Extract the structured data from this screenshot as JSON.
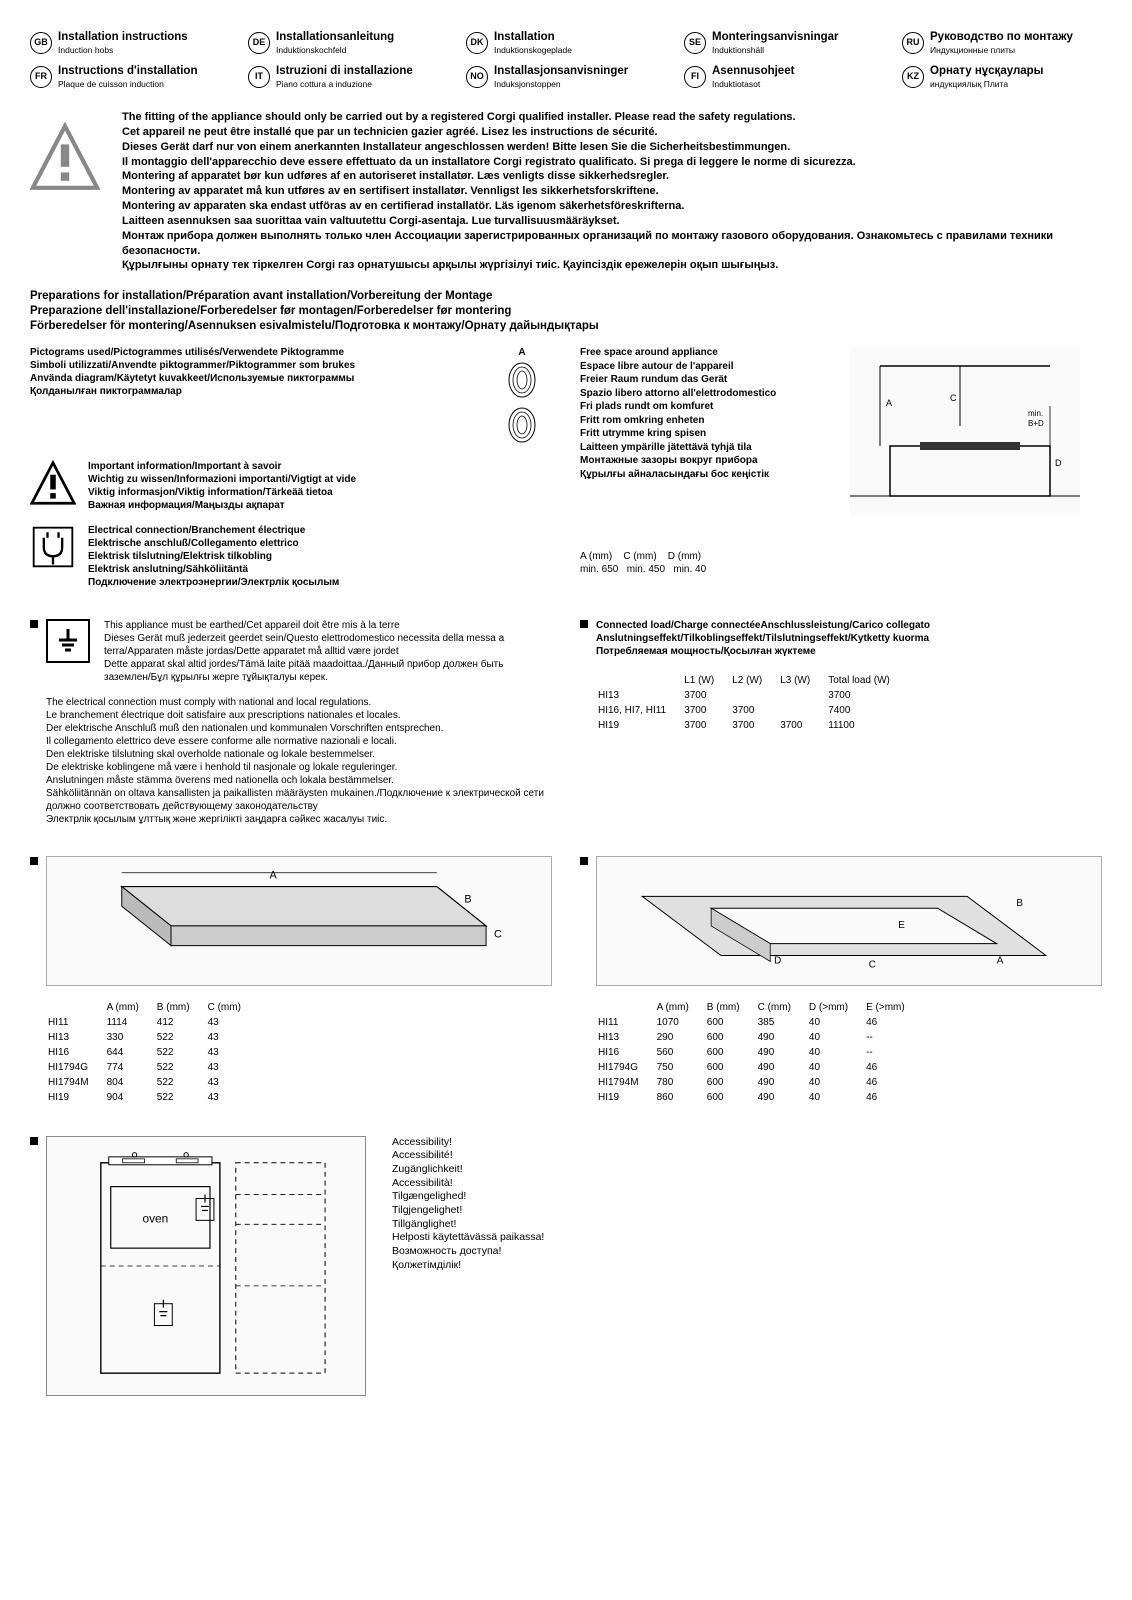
{
  "languages": [
    {
      "code": "GB",
      "title": "Installation instructions",
      "sub": "Induction hobs"
    },
    {
      "code": "DE",
      "title": "Installationsanleitung",
      "sub": "Induktionskochfeld"
    },
    {
      "code": "DK",
      "title": "Installation",
      "sub": "Induktionskogeplade"
    },
    {
      "code": "SE",
      "title": "Monteringsanvisningar",
      "sub": "Induktionshäll"
    },
    {
      "code": "RU",
      "title": "Руководство по монтажу",
      "sub": "Индукционные плиты"
    },
    {
      "code": "FR",
      "title": "Instructions d'installation",
      "sub": "Plaque de cuisson induction"
    },
    {
      "code": "IT",
      "title": "Istruzioni di installazione",
      "sub": "Piano cottura a induzione"
    },
    {
      "code": "NO",
      "title": "Installasjonsanvisninger",
      "sub": "Induksjonstoppen"
    },
    {
      "code": "FI",
      "title": "Asennusohjeet",
      "sub": "Induktiotasot"
    },
    {
      "code": "KZ",
      "title": "Орнату нұсқаулары",
      "sub": "индукциялық Плита"
    }
  ],
  "warnings": [
    "The fitting of the appliance should only be carried out by a registered Corgi qualified installer. Please read the safety regulations.",
    "Cet appareil ne peut être installé que par un technicien gazier agréé. Lisez les instructions de sécurité.",
    "Dieses Gerät darf nur von einem anerkannten Installateur angeschlossen werden! Bitte lesen Sie die Sicherheitsbestimmungen.",
    "Il montaggio dell'apparecchio deve essere effettuato da un installatore Corgi registrato qualificato. Si prega di leggere le norme di sicurezza.",
    "Montering af apparatet bør kun udføres af en autoriseret installatør. Læs venligts disse sikkerhedsregler.",
    "Montering av apparatet må kun utføres av en sertifisert installatør. Vennligst les sikkerhetsforskriftene.",
    "Montering av apparaten ska endast utföras av en certifierad installatör. Läs igenom säkerhetsföreskrifterna.",
    "Laitteen asennuksen saa suorittaa vain valtuutettu Corgi-asentaja. Lue turvallisuusmääräykset.",
    "Монтаж прибора должен выполнять только член Ассоциации зарегистрированных организаций по монтажу газового оборудования. Ознакомьтесь с правилами техники безопасности.",
    "Құрылғыны орнату тек тіркелген Corgi газ орнатушысы арқылы жүргізілуі тиіс. Қауіпсіздік ережелерін оқып шығыңыз."
  ],
  "prep_heading": [
    "Preparations for installation/Préparation avant installation/Vorbereitung der Montage",
    "Preparazione dell'installazione/Forberedelser før montagen/Forberedelser før montering",
    "Förberedelser för montering/Asennuksen esivalmistelu/Подготовка к монтажу/Орнату дайындықтары"
  ],
  "pictograms_block": "Pictograms used/Pictogrammes utilisés/Verwendete Piktogramme\nSimboli utilizzati/Anvendte piktogrammer/Piktogrammer som brukes\nAnvända diagram/Käytetyt kuvakkeet/Используемые пиктограммы\nҚолданылған пиктограммалар",
  "important_block": "Important information/Important à savoir\nWichtig zu wissen/Informazioni importanti/Vigtigt at vide\nViktig informasjon/Viktig information/Tärkeää tietoa\nВажная информация/Маңызды ақпарат",
  "electrical_block": "Electrical connection/Branchement électrique\nElektrische anschluß/Collegamento elettrico\nElektrisk tilslutning/Elektrisk tilkobling\nElektrisk anslutning/Sähköliitäntä\nПодключение электроэнергии/Электрлік қосылым",
  "free_space_block": "Free space around appliance\nEspace libre autour de l'appareil\nFreier Raum rundum das Gerät\nSpazio libero attorno all'elettrodomestico\nFri plads rundt om komfuret\nFritt rom omkring enheten\nFritt utrymme kring spisen\nLaitteen ympärille jätettävä tyhjä tila\nМонтажные зазоры вокруг прибора\nҚұрылғы айналасындағы бос кеңістік",
  "abd": "A (mm)    C (mm)    D (mm)\nmin. 650   min. 450   min. 40",
  "earth_text": "This appliance must be earthed/Cet appareil doit être mis à la terre\nDieses Gerät muß jederzeit geerdet sein/Questo elettrodomestico necessita della messa a terra/Apparaten måste jordas/Dette apparatet må alltid være jordet\nDette apparat skal altid jordes/Tämä laite pitää maadoittaa./Данный прибор должен быть заземлен/Бұл құрылғы жерге тұйықталуы керек.",
  "regs": "The electrical connection must comply with national and local regulations.\nLe branchement électrique doit satisfaire aux prescriptions nationales et locales.\nDer elektrische Anschluß muß den nationalen und kommunalen Vorschriften entsprechen.\nIl collegamento elettrico deve essere conforme alle normative nazionali e locali.\nDen elektriske tilslutning skal overholde nationale og lokale bestemmelser.\nDe elektriske koblingene må være i henhold til nasjonale og lokale reguleringer.\nAnslutningen måste stämma överens med nationella och lokala bestämmelser.\nSähköliitännän on oltava kansallisten ja paikallisten määräysten mukainen./Подключение к электрической сети должно соответствовать действующему законодательству\nЭлектрлік қосылым ұлттық және жергілікті заңдарға сәйкес жасалуы тиіс.",
  "load_head": "Connected load/Charge connectéeAnschlussleistung/Carico collegato\nAnslutningseffekt/Tilkoblingseffekt/Tilslutningseffekt/Kytketty kuorma\nПотребляемая мощность/Қосылған жүктеме",
  "load_table": {
    "columns": [
      "",
      "L1 (W)",
      "L2 (W)",
      "L3 (W)",
      "Total load (W)"
    ],
    "rows": [
      [
        "HI13",
        "3700",
        "",
        "",
        "3700"
      ],
      [
        "HI16, HI7, HI11",
        "3700",
        "3700",
        "",
        "7400"
      ],
      [
        "HI19",
        "3700",
        "3700",
        "3700",
        "11100"
      ]
    ]
  },
  "dims_left": {
    "columns": [
      "",
      "A (mm)",
      "B (mm)",
      "C (mm)"
    ],
    "rows": [
      [
        "HI11",
        "1114",
        "412",
        "43"
      ],
      [
        "HI13",
        "330",
        "522",
        "43"
      ],
      [
        "HI16",
        "644",
        "522",
        "43"
      ],
      [
        "HI1794G",
        "774",
        "522",
        "43"
      ],
      [
        "HI1794M",
        "804",
        "522",
        "43"
      ],
      [
        "HI19",
        "904",
        "522",
        "43"
      ]
    ]
  },
  "dims_right": {
    "columns": [
      "",
      "A (mm)",
      "B (mm)",
      "C (mm)",
      "D (>mm)",
      "E (>mm)"
    ],
    "rows": [
      [
        "HI11",
        "1070",
        "600",
        "385",
        "40",
        "46"
      ],
      [
        "HI13",
        "290",
        "600",
        "490",
        "40",
        "--"
      ],
      [
        "HI16",
        "560",
        "600",
        "490",
        "40",
        "--"
      ],
      [
        "HI1794G",
        "750",
        "600",
        "490",
        "40",
        "46"
      ],
      [
        "HI1794M",
        "780",
        "600",
        "490",
        "40",
        "46"
      ],
      [
        "HI19",
        "860",
        "600",
        "490",
        "40",
        "46"
      ]
    ]
  },
  "accessibility": "Accessibility!\nAccessibilité!\nZugänglichkeit!\nAccessibilità!\nTilgængelighed!\nTilgjengelighet!\nTillgänglighet!\nHelposti käytettävässä paikassa!\nВозможность доступа!\nҚолжетімділік!",
  "oven_label": "oven"
}
